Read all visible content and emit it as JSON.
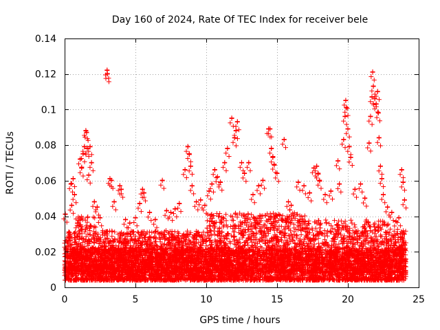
{
  "chart_data": {
    "type": "scatter",
    "title": "Day 160 of 2024, Rate Of TEC Index for receiver bele",
    "xlabel": "GPS time / hours",
    "ylabel": "ROTI / TECUs",
    "xlim": [
      0,
      25
    ],
    "ylim": [
      0,
      0.14
    ],
    "xticks": [
      0,
      5,
      10,
      15,
      20,
      25
    ],
    "xtick_labels": [
      "0",
      "5",
      "10",
      "15",
      "20",
      "25"
    ],
    "yticks": [
      0,
      0.02,
      0.04,
      0.06,
      0.08,
      0.1,
      0.12,
      0.14
    ],
    "ytick_labels": [
      "0",
      "0.02",
      "0.04",
      "0.06",
      "0.08",
      "0.1",
      "0.12",
      "0.14"
    ],
    "grid": true,
    "marker": "plus",
    "color": "#ff0000",
    "series": [
      {
        "name": "ROTI",
        "points": [
          [
            0.05,
            0.041
          ],
          [
            0.3,
            0.028
          ],
          [
            0.45,
            0.058
          ],
          [
            0.5,
            0.046
          ],
          [
            0.6,
            0.061
          ],
          [
            0.7,
            0.052
          ],
          [
            0.9,
            0.036
          ],
          [
            1.1,
            0.072
          ],
          [
            1.2,
            0.067
          ],
          [
            1.3,
            0.075
          ],
          [
            1.4,
            0.079
          ],
          [
            1.5,
            0.088
          ],
          [
            1.55,
            0.087
          ],
          [
            1.6,
            0.078
          ],
          [
            1.7,
            0.063
          ],
          [
            1.8,
            0.079
          ],
          [
            1.9,
            0.07
          ],
          [
            2.1,
            0.048
          ],
          [
            2.3,
            0.045
          ],
          [
            2.5,
            0.039
          ],
          [
            3.0,
            0.122
          ],
          [
            3.02,
            0.12
          ],
          [
            3.2,
            0.061
          ],
          [
            3.3,
            0.06
          ],
          [
            3.5,
            0.048
          ],
          [
            3.9,
            0.057
          ],
          [
            4.0,
            0.055
          ],
          [
            4.3,
            0.038
          ],
          [
            4.6,
            0.036
          ],
          [
            4.8,
            0.031
          ],
          [
            5.0,
            0.039
          ],
          [
            5.3,
            0.047
          ],
          [
            5.5,
            0.055
          ],
          [
            5.6,
            0.053
          ],
          [
            6.0,
            0.042
          ],
          [
            6.4,
            0.038
          ],
          [
            6.9,
            0.06
          ],
          [
            7.2,
            0.043
          ],
          [
            7.5,
            0.042
          ],
          [
            7.8,
            0.044
          ],
          [
            8.1,
            0.047
          ],
          [
            8.5,
            0.066
          ],
          [
            8.7,
            0.079
          ],
          [
            8.8,
            0.075
          ],
          [
            8.9,
            0.068
          ],
          [
            9.0,
            0.057
          ],
          [
            9.3,
            0.048
          ],
          [
            9.6,
            0.049
          ],
          [
            9.9,
            0.046
          ],
          [
            10.2,
            0.054
          ],
          [
            10.4,
            0.058
          ],
          [
            10.6,
            0.066
          ],
          [
            10.8,
            0.062
          ],
          [
            11.0,
            0.059
          ],
          [
            11.3,
            0.07
          ],
          [
            11.5,
            0.078
          ],
          [
            11.8,
            0.095
          ],
          [
            12.0,
            0.084
          ],
          [
            12.1,
            0.088
          ],
          [
            12.2,
            0.093
          ],
          [
            12.5,
            0.07
          ],
          [
            12.7,
            0.064
          ],
          [
            13.0,
            0.07
          ],
          [
            13.3,
            0.052
          ],
          [
            13.7,
            0.057
          ],
          [
            14.0,
            0.06
          ],
          [
            14.4,
            0.089
          ],
          [
            14.5,
            0.089
          ],
          [
            14.6,
            0.078
          ],
          [
            14.7,
            0.073
          ],
          [
            14.8,
            0.069
          ],
          [
            15.0,
            0.064
          ],
          [
            15.5,
            0.083
          ],
          [
            15.8,
            0.048
          ],
          [
            16.0,
            0.046
          ],
          [
            16.5,
            0.059
          ],
          [
            16.9,
            0.057
          ],
          [
            17.3,
            0.053
          ],
          [
            17.6,
            0.067
          ],
          [
            17.8,
            0.068
          ],
          [
            17.9,
            0.064
          ],
          [
            18.0,
            0.06
          ],
          [
            18.4,
            0.052
          ],
          [
            18.8,
            0.054
          ],
          [
            19.3,
            0.071
          ],
          [
            19.4,
            0.058
          ],
          [
            19.7,
            0.083
          ],
          [
            19.8,
            0.096
          ],
          [
            19.85,
            0.105
          ],
          [
            19.9,
            0.101
          ],
          [
            20.0,
            0.089
          ],
          [
            20.1,
            0.079
          ],
          [
            20.2,
            0.073
          ],
          [
            20.5,
            0.055
          ],
          [
            20.9,
            0.058
          ],
          [
            21.2,
            0.05
          ],
          [
            21.5,
            0.081
          ],
          [
            21.6,
            0.096
          ],
          [
            21.7,
            0.107
          ],
          [
            21.75,
            0.121
          ],
          [
            21.8,
            0.113
          ],
          [
            21.9,
            0.106
          ],
          [
            22.0,
            0.103
          ],
          [
            22.1,
            0.11
          ],
          [
            22.15,
            0.098
          ],
          [
            22.2,
            0.084
          ],
          [
            22.3,
            0.068
          ],
          [
            22.4,
            0.061
          ],
          [
            22.5,
            0.052
          ],
          [
            22.8,
            0.045
          ],
          [
            23.1,
            0.042
          ],
          [
            23.4,
            0.037
          ],
          [
            23.6,
            0.039
          ],
          [
            23.8,
            0.066
          ],
          [
            23.9,
            0.059
          ],
          [
            24.0,
            0.049
          ]
        ]
      }
    ]
  }
}
